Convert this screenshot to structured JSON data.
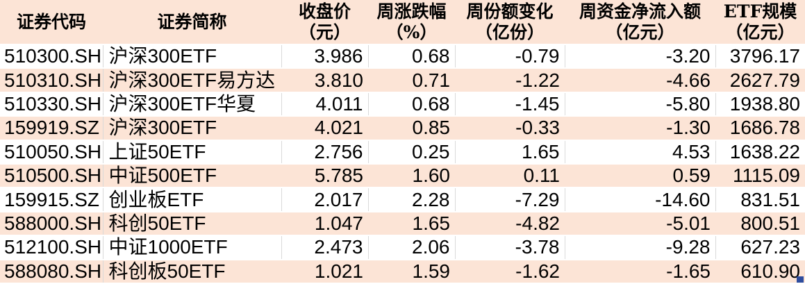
{
  "table": {
    "columns": [
      {
        "key": "security-code",
        "label": "证券代码",
        "unit": ""
      },
      {
        "key": "security-name",
        "label": "证券简称",
        "unit": ""
      },
      {
        "key": "close-price",
        "label": "收盘价",
        "unit": "（元）"
      },
      {
        "key": "weekly-change-pct",
        "label": "周涨跌幅",
        "unit": "（%）"
      },
      {
        "key": "weekly-share-change",
        "label": "周份额变化",
        "unit": "（亿份）"
      },
      {
        "key": "weekly-net-inflow",
        "label": "周资金净流入额",
        "unit": "（亿元）"
      },
      {
        "key": "etf-scale",
        "label": "ETF规模",
        "unit": "（亿元）"
      }
    ],
    "rows": [
      [
        "510300.SH",
        "沪深300ETF",
        "3.986",
        "0.68",
        "-0.79",
        "-3.20",
        "3796.17"
      ],
      [
        "510310.SH",
        "沪深300ETF易方达",
        "3.810",
        "0.71",
        "-1.22",
        "-4.66",
        "2627.79"
      ],
      [
        "510330.SH",
        "沪深300ETF华夏",
        "4.011",
        "0.68",
        "-1.45",
        "-5.80",
        "1938.80"
      ],
      [
        "159919.SZ",
        "沪深300ETF",
        "4.021",
        "0.85",
        "-0.33",
        "-1.30",
        "1686.78"
      ],
      [
        "510050.SH",
        "上证50ETF",
        "2.756",
        "0.25",
        "1.65",
        "4.53",
        "1638.22"
      ],
      [
        "510500.SH",
        "中证500ETF",
        "5.785",
        "1.60",
        "0.11",
        "0.59",
        "1115.09"
      ],
      [
        "159915.SZ",
        "创业板ETF",
        "2.017",
        "2.28",
        "-7.29",
        "-14.60",
        "831.51"
      ],
      [
        "588000.SH",
        "科创50ETF",
        "1.047",
        "1.65",
        "-4.82",
        "-5.01",
        "800.51"
      ],
      [
        "512100.SH",
        "中证1000ETF",
        "2.473",
        "2.06",
        "-3.78",
        "-9.28",
        "627.23"
      ],
      [
        "588080.SH",
        "科创板50ETF",
        "1.021",
        "1.59",
        "-1.62",
        "-1.65",
        "610.90"
      ]
    ]
  },
  "colors": {
    "stripe_fill": "#fce4d6",
    "plain_fill": "#ffffff",
    "gridline": "#d9d9d9",
    "text": "#000000",
    "fill_handle": "#2e4d9e"
  },
  "icons": {
    "fill_handle": "excel-fill-handle"
  }
}
